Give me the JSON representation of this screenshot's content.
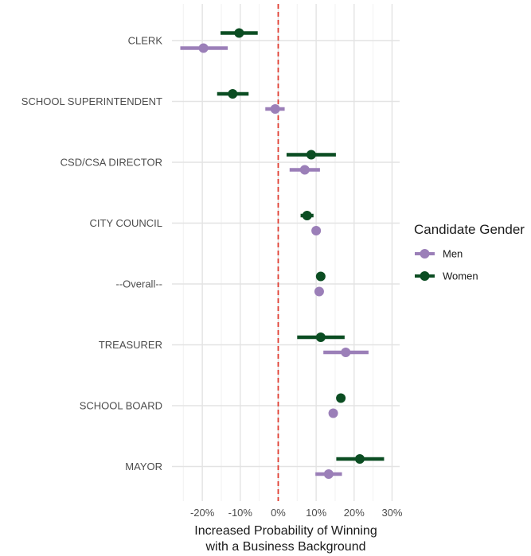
{
  "chart_data": {
    "type": "scatter",
    "subtype": "dot-and-interval",
    "title": "",
    "xlabel_lines": [
      "Increased Probability of Winning",
      "with a Business Background"
    ],
    "xlim": [
      -0.28,
      0.32
    ],
    "xticks": [
      -0.2,
      -0.1,
      0,
      0.1,
      0.2,
      0.3
    ],
    "xtick_labels": [
      "-20%",
      "-10%",
      "0%",
      "10%",
      "20%",
      "30%"
    ],
    "reference_line": {
      "x": 0,
      "color": "#e03c31",
      "style": "dashed"
    },
    "grid": true,
    "categories": [
      "CLERK",
      "SCHOOL SUPERINTENDENT",
      "CSD/CSA DIRECTOR",
      "CITY COUNCIL",
      "--Overall--",
      "TREASURER",
      "SCHOOL BOARD",
      "MAYOR"
    ],
    "series": [
      {
        "name": "Women",
        "color": "#0b4d22",
        "points": [
          {
            "category": "CLERK",
            "estimate": -0.103,
            "lower": -0.152,
            "upper": -0.054
          },
          {
            "category": "SCHOOL SUPERINTENDENT",
            "estimate": -0.12,
            "lower": -0.161,
            "upper": -0.078
          },
          {
            "category": "CSD/CSA DIRECTOR",
            "estimate": 0.087,
            "lower": 0.022,
            "upper": 0.152
          },
          {
            "category": "CITY COUNCIL",
            "estimate": 0.076,
            "lower": 0.059,
            "upper": 0.093
          },
          {
            "category": "--Overall--",
            "estimate": 0.112,
            "lower": 0.106,
            "upper": 0.118
          },
          {
            "category": "TREASURER",
            "estimate": 0.112,
            "lower": 0.05,
            "upper": 0.175
          },
          {
            "category": "SCHOOL BOARD",
            "estimate": 0.165,
            "lower": 0.156,
            "upper": 0.174
          },
          {
            "category": "MAYOR",
            "estimate": 0.215,
            "lower": 0.153,
            "upper": 0.279
          }
        ]
      },
      {
        "name": "Men",
        "color": "#9b7fb8",
        "points": [
          {
            "category": "CLERK",
            "estimate": -0.197,
            "lower": -0.258,
            "upper": -0.133
          },
          {
            "category": "SCHOOL SUPERINTENDENT",
            "estimate": -0.008,
            "lower": -0.034,
            "upper": 0.017
          },
          {
            "category": "CSD/CSA DIRECTOR",
            "estimate": 0.07,
            "lower": 0.03,
            "upper": 0.11
          },
          {
            "category": "CITY COUNCIL",
            "estimate": 0.1,
            "lower": 0.095,
            "upper": 0.105
          },
          {
            "category": "--Overall--",
            "estimate": 0.108,
            "lower": 0.104,
            "upper": 0.112
          },
          {
            "category": "TREASURER",
            "estimate": 0.178,
            "lower": 0.119,
            "upper": 0.238
          },
          {
            "category": "SCHOOL BOARD",
            "estimate": 0.145,
            "lower": 0.139,
            "upper": 0.151
          },
          {
            "category": "MAYOR",
            "estimate": 0.133,
            "lower": 0.098,
            "upper": 0.168
          }
        ]
      }
    ],
    "legend": {
      "title": "Candidate Gender",
      "placement": "right",
      "entries": [
        {
          "name": "Men",
          "color": "#9b7fb8"
        },
        {
          "name": "Women",
          "color": "#0b4d22"
        }
      ]
    }
  }
}
